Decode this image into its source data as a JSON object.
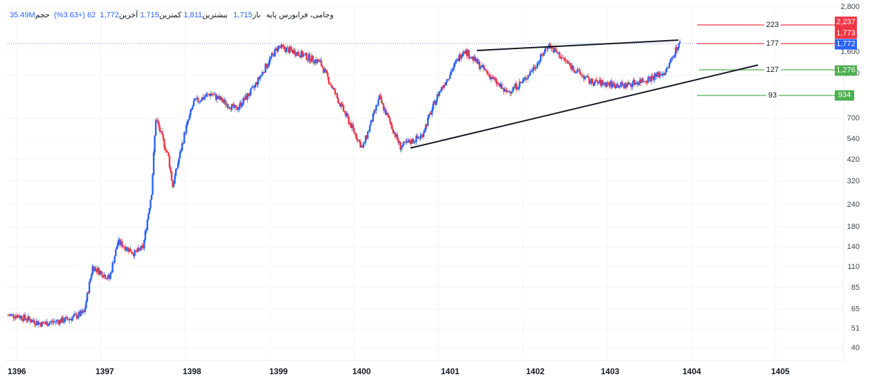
{
  "legend": {
    "symbol": "وجامی، فرابورس پایه",
    "open_label": "باز",
    "open": "1,715",
    "high_label": "بیشترین",
    "high": "1,811",
    "low_label": "کمترین",
    "low": "1,715",
    "close_label": "آخرین",
    "close": "1,772",
    "change": "62 (+3.63%)",
    "volume_label": "حجم",
    "volume": "35.49M"
  },
  "colors": {
    "up": "#2962ff",
    "down": "#f23645",
    "resistance": "#f23645",
    "support": "#4caf50",
    "trendline": "#131722",
    "last_price": "#2962ff"
  },
  "levels": [
    {
      "label": "223",
      "price_tag": "2,237",
      "price": 2237,
      "type": "resistance"
    },
    {
      "label": "177",
      "price_tag": "1,773",
      "price": 1773,
      "type": "resistance"
    },
    {
      "label": "127",
      "price_tag": "1,276",
      "price": 1276,
      "type": "support"
    },
    {
      "label": "93",
      "price_tag": "934",
      "price": 934,
      "type": "support"
    }
  ],
  "last_price_tag": "1,772",
  "chart_data": {
    "type": "candlestick",
    "title": "وجامی، فرابورس پایه",
    "scale": "log",
    "xlabel": "",
    "ylabel": "",
    "x_ticks": [
      "1396",
      "1397",
      "1398",
      "1399",
      "1400",
      "1401",
      "1402",
      "1403",
      "1404",
      "1405"
    ],
    "y_ticks": [
      "2,800",
      "1,600",
      "1,200",
      "700",
      "540",
      "420",
      "320",
      "240",
      "180",
      "140",
      "110",
      "85",
      "65",
      "51",
      "40"
    ],
    "ylim": [
      36,
      2900
    ],
    "approx_close_by_time": [
      {
        "x": 1396.0,
        "y": 60
      },
      {
        "x": 1396.3,
        "y": 54
      },
      {
        "x": 1396.6,
        "y": 57
      },
      {
        "x": 1396.8,
        "y": 62
      },
      {
        "x": 1396.9,
        "y": 110
      },
      {
        "x": 1397.1,
        "y": 95
      },
      {
        "x": 1397.2,
        "y": 150
      },
      {
        "x": 1397.4,
        "y": 130
      },
      {
        "x": 1397.5,
        "y": 140
      },
      {
        "x": 1397.6,
        "y": 280
      },
      {
        "x": 1397.65,
        "y": 700
      },
      {
        "x": 1397.8,
        "y": 430
      },
      {
        "x": 1397.85,
        "y": 300
      },
      {
        "x": 1398.0,
        "y": 600
      },
      {
        "x": 1398.1,
        "y": 850
      },
      {
        "x": 1398.3,
        "y": 950
      },
      {
        "x": 1398.6,
        "y": 780
      },
      {
        "x": 1398.8,
        "y": 1000
      },
      {
        "x": 1399.0,
        "y": 1450
      },
      {
        "x": 1399.1,
        "y": 1700
      },
      {
        "x": 1399.3,
        "y": 1600
      },
      {
        "x": 1399.6,
        "y": 1400
      },
      {
        "x": 1399.8,
        "y": 900
      },
      {
        "x": 1400.1,
        "y": 480
      },
      {
        "x": 1400.3,
        "y": 900
      },
      {
        "x": 1400.55,
        "y": 490
      },
      {
        "x": 1400.8,
        "y": 560
      },
      {
        "x": 1401.0,
        "y": 950
      },
      {
        "x": 1401.3,
        "y": 1650
      },
      {
        "x": 1401.6,
        "y": 1200
      },
      {
        "x": 1401.8,
        "y": 960
      },
      {
        "x": 1402.0,
        "y": 1100
      },
      {
        "x": 1402.2,
        "y": 1450
      },
      {
        "x": 1402.3,
        "y": 1750
      },
      {
        "x": 1402.6,
        "y": 1300
      },
      {
        "x": 1402.8,
        "y": 1100
      },
      {
        "x": 1403.2,
        "y": 1050
      },
      {
        "x": 1403.5,
        "y": 1150
      },
      {
        "x": 1403.7,
        "y": 1250
      },
      {
        "x": 1403.8,
        "y": 1600
      },
      {
        "x": 1403.85,
        "y": 1772
      }
    ],
    "annotations": [
      {
        "type": "trendline",
        "name": "upper",
        "from": {
          "x": 1401.3,
          "y": 1650
        },
        "to": {
          "x": 1403.85,
          "y": 1850
        }
      },
      {
        "type": "trendline",
        "name": "lower",
        "from": {
          "x": 1400.55,
          "y": 485
        },
        "to": {
          "x": 1404.75,
          "y": 1380
        }
      },
      {
        "type": "hline",
        "label": "223",
        "y": 2237,
        "color": "red"
      },
      {
        "type": "hline",
        "label": "177",
        "y": 1773,
        "color": "red"
      },
      {
        "type": "hline",
        "label": "127",
        "y": 1276,
        "color": "green"
      },
      {
        "type": "hline",
        "label": "93",
        "y": 934,
        "color": "green"
      }
    ],
    "last": {
      "open": 1715,
      "high": 1811,
      "low": 1715,
      "close": 1772,
      "change": 62,
      "change_pct": 3.63,
      "volume": "35.49M"
    },
    "grid": true,
    "legend_position": "top-left"
  }
}
